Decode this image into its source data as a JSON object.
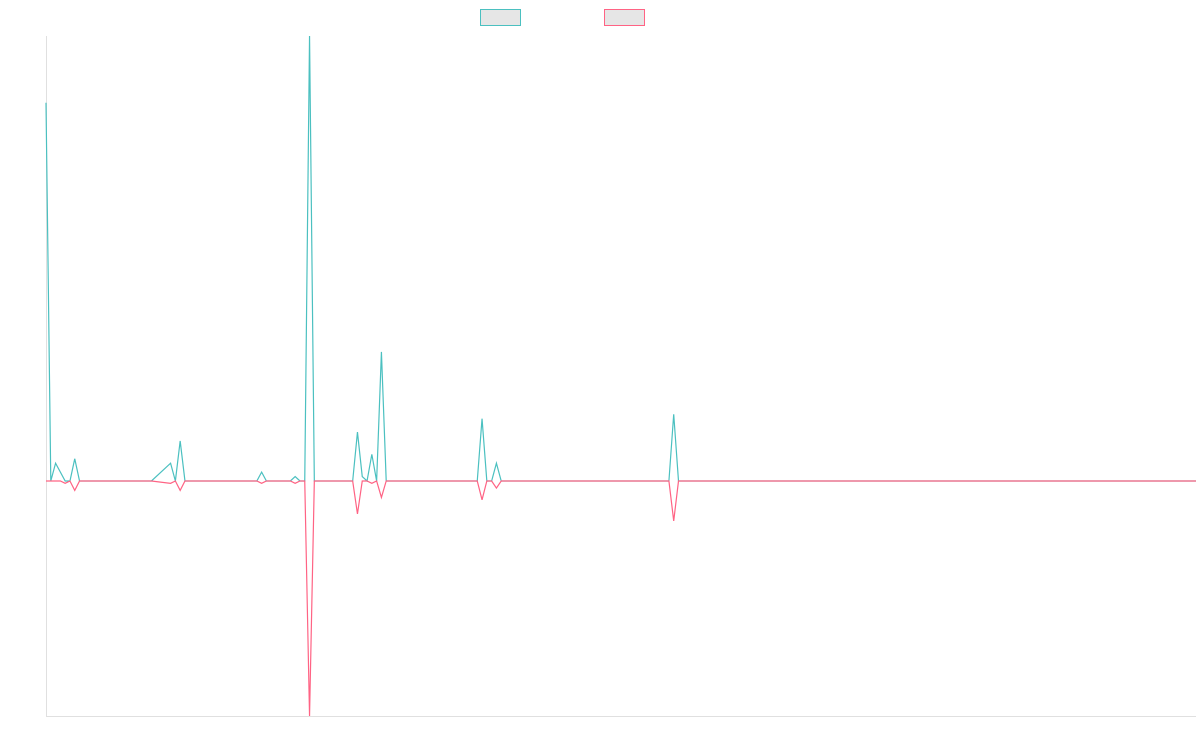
{
  "chart_data": {
    "type": "line",
    "title": "",
    "xlabel": "",
    "ylabel": "",
    "x_count": 240,
    "ylim": [
      -100,
      100
    ],
    "grid": false,
    "legend_position": "top-center",
    "series": [
      {
        "color": "#4bc0c0",
        "fill": "#e6e6e6",
        "baseline": 0,
        "points": [
          [
            0,
            85
          ],
          [
            1,
            0
          ],
          [
            2,
            4
          ],
          [
            4,
            0
          ],
          [
            5,
            0
          ],
          [
            6,
            5
          ],
          [
            7,
            0
          ],
          [
            17,
            0
          ],
          [
            18,
            0
          ],
          [
            19,
            0
          ],
          [
            20,
            0
          ],
          [
            21,
            0
          ],
          [
            22,
            0
          ],
          [
            26,
            4
          ],
          [
            27,
            0
          ],
          [
            28,
            9
          ],
          [
            29,
            0
          ],
          [
            44,
            0
          ],
          [
            45,
            2
          ],
          [
            46,
            0
          ],
          [
            51,
            0
          ],
          [
            52,
            1
          ],
          [
            53,
            0
          ],
          [
            54,
            0
          ],
          [
            55,
            100
          ],
          [
            56,
            0
          ],
          [
            64,
            0
          ],
          [
            65,
            11
          ],
          [
            66,
            1
          ],
          [
            67,
            0
          ],
          [
            68,
            6
          ],
          [
            69,
            0
          ],
          [
            70,
            29
          ],
          [
            71,
            0
          ],
          [
            74,
            0
          ],
          [
            83,
            0
          ],
          [
            90,
            0
          ],
          [
            91,
            14
          ],
          [
            92,
            0
          ],
          [
            93,
            0
          ],
          [
            94,
            4
          ],
          [
            95,
            0
          ],
          [
            106,
            0
          ],
          [
            130,
            0
          ],
          [
            131,
            15
          ],
          [
            132,
            0
          ],
          [
            134,
            0
          ],
          [
            164,
            0
          ],
          [
            171,
            0
          ],
          [
            240,
            0
          ]
        ]
      },
      {
        "color": "#ff6384",
        "fill": "#e6e6e6",
        "baseline": 0,
        "points": [
          [
            0,
            0
          ],
          [
            1,
            0
          ],
          [
            2,
            0
          ],
          [
            3,
            0
          ],
          [
            4,
            -1
          ],
          [
            5,
            0
          ],
          [
            6,
            -4
          ],
          [
            7,
            0
          ],
          [
            17,
            0
          ],
          [
            18,
            0
          ],
          [
            19,
            0
          ],
          [
            20,
            0
          ],
          [
            21,
            0
          ],
          [
            22,
            0
          ],
          [
            26,
            -1
          ],
          [
            27,
            0
          ],
          [
            28,
            -4
          ],
          [
            29,
            0
          ],
          [
            44,
            0
          ],
          [
            45,
            -1
          ],
          [
            46,
            0
          ],
          [
            51,
            0
          ],
          [
            52,
            -1
          ],
          [
            53,
            0
          ],
          [
            54,
            0
          ],
          [
            55,
            -100
          ],
          [
            56,
            0
          ],
          [
            64,
            0
          ],
          [
            65,
            -14
          ],
          [
            66,
            0
          ],
          [
            67,
            0
          ],
          [
            68,
            -1
          ],
          [
            69,
            0
          ],
          [
            70,
            -7
          ],
          [
            71,
            0
          ],
          [
            74,
            0
          ],
          [
            83,
            0
          ],
          [
            90,
            0
          ],
          [
            91,
            -8
          ],
          [
            92,
            0
          ],
          [
            93,
            0
          ],
          [
            94,
            -3
          ],
          [
            95,
            0
          ],
          [
            106,
            0
          ],
          [
            130,
            0
          ],
          [
            131,
            -17
          ],
          [
            132,
            0
          ],
          [
            134,
            0
          ],
          [
            164,
            0
          ],
          [
            171,
            0
          ],
          [
            240,
            0
          ]
        ]
      }
    ]
  }
}
